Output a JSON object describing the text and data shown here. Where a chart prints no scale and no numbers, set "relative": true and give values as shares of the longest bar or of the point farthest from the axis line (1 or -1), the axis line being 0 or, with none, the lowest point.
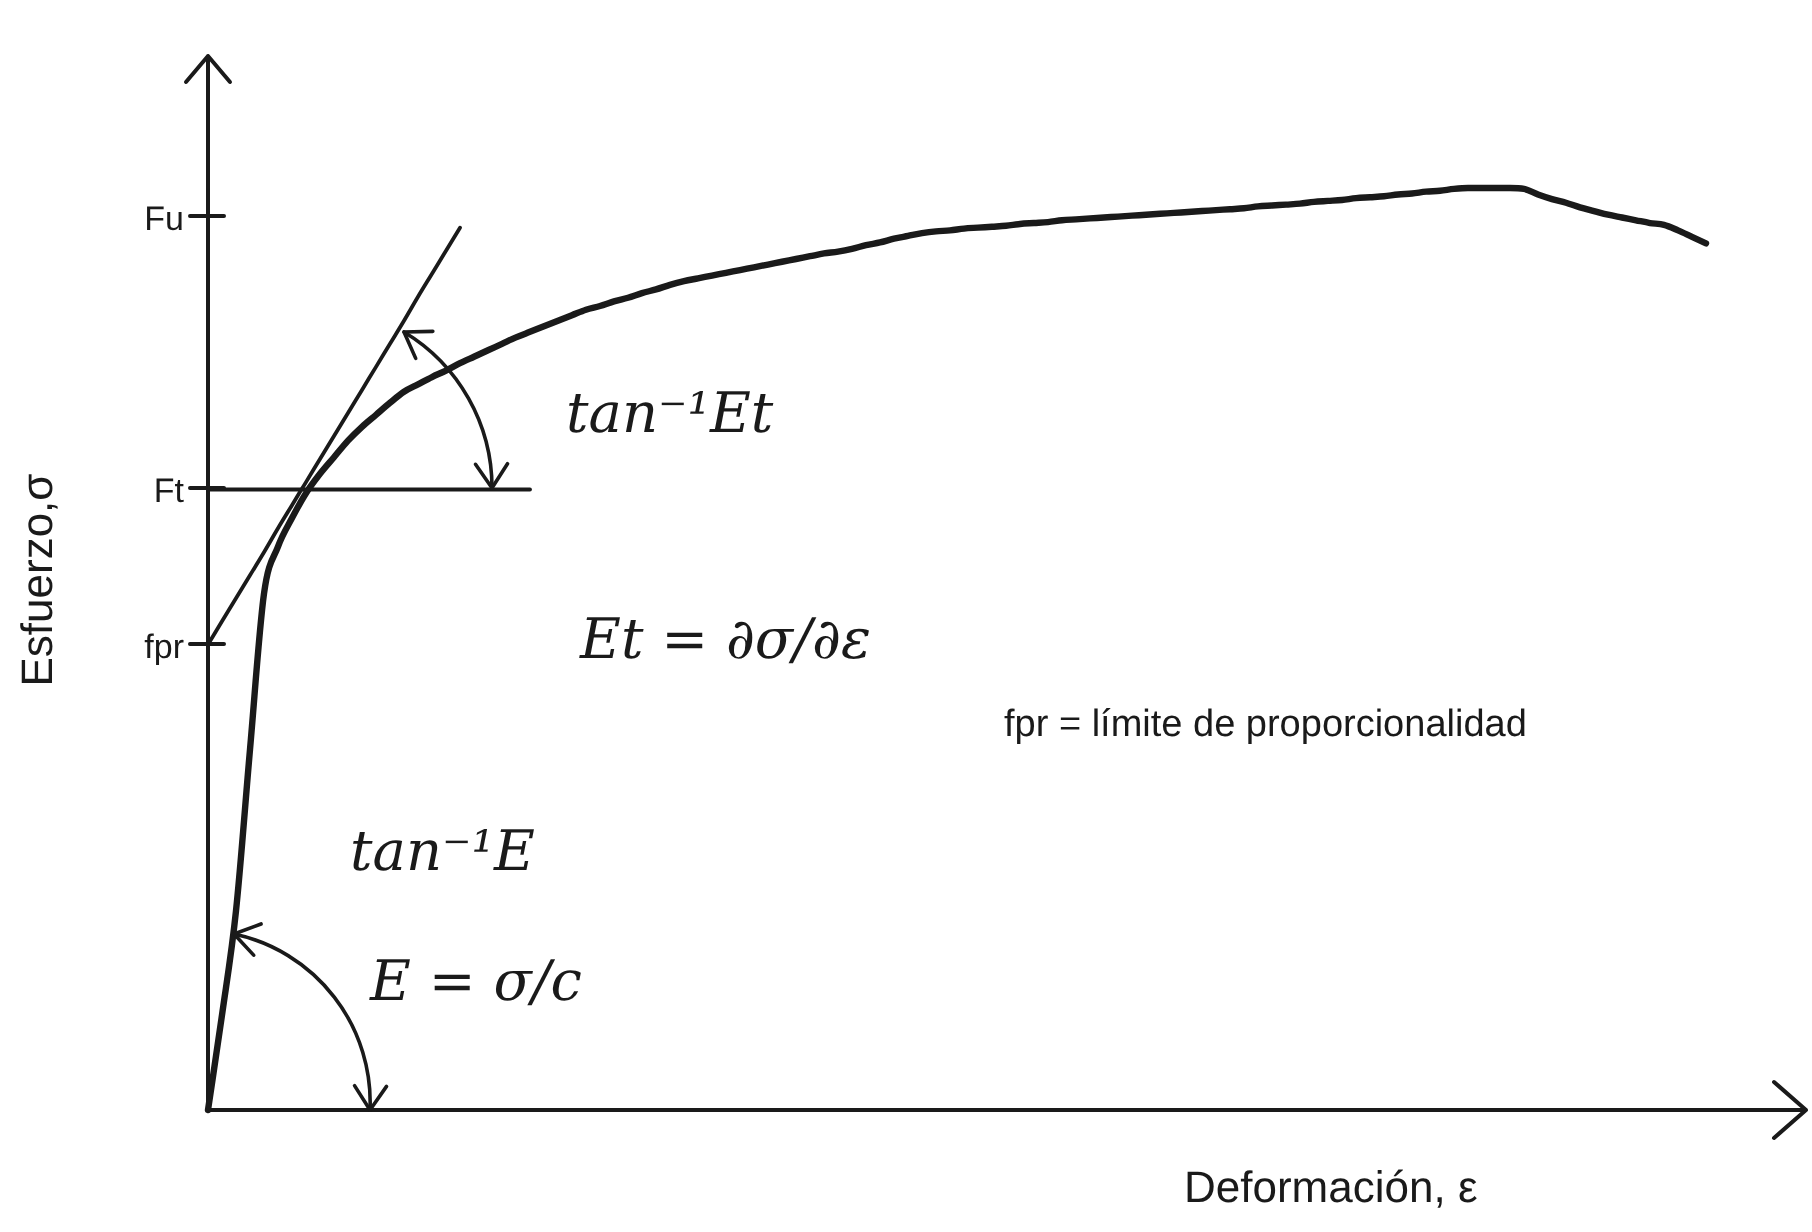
{
  "chart_data": {
    "type": "line",
    "relative": true,
    "xlabel": "Deformación, ε",
    "ylabel": "Esfuerzo,σ",
    "categories": [
      null,
      null,
      null,
      null,
      null,
      null,
      null,
      null,
      null,
      null,
      null,
      null,
      null,
      null,
      null,
      null,
      null,
      null,
      null,
      null,
      null,
      null,
      null,
      null,
      null,
      null,
      null,
      null,
      null,
      null,
      null,
      null,
      null,
      null,
      null,
      null,
      null,
      null,
      null,
      null,
      null,
      null,
      null,
      null,
      null,
      null,
      null,
      null,
      null,
      null,
      null,
      null,
      null,
      null,
      null,
      null,
      null,
      null,
      null,
      null,
      null,
      null,
      null,
      null,
      null,
      null,
      null,
      null,
      null,
      null,
      null,
      null,
      null,
      null,
      null,
      null,
      null,
      null,
      null,
      null,
      null,
      null,
      null,
      null,
      null,
      null,
      null,
      null,
      null,
      null,
      null,
      null,
      null,
      null,
      null,
      null,
      null,
      null,
      null,
      null,
      null,
      null,
      null,
      null,
      null,
      null,
      null,
      null,
      null,
      null,
      null,
      null,
      null,
      null
    ],
    "series": [
      {
        "color": "#1a1a1a",
        "values": [
          0,
          0.103,
          0.216,
          0.391,
          0.56,
          0.611,
          0.642,
          0.669,
          0.69,
          0.708,
          0.726,
          0.741,
          0.754,
          0.767,
          0.779,
          0.787,
          0.795,
          0.802,
          0.81,
          0.817,
          0.824,
          0.831,
          0.838,
          0.844,
          0.85,
          0.856,
          0.862,
          0.868,
          0.872,
          0.877,
          0.881,
          0.886,
          0.89,
          0.895,
          0.899,
          0.902,
          0.905,
          0.908,
          0.911,
          0.914,
          0.917,
          0.92,
          0.923,
          0.926,
          0.929,
          0.931,
          0.934,
          0.938,
          0.941,
          0.945,
          0.948,
          0.951,
          0.953,
          0.954,
          0.956,
          0.957,
          0.958,
          0.959,
          0.961,
          0.962,
          0.963,
          0.965,
          0.966,
          0.967,
          0.968,
          0.969,
          0.97,
          0.971,
          0.972,
          0.973,
          0.974,
          0.975,
          0.976,
          0.977,
          0.978,
          0.98,
          0.981,
          0.982,
          0.983,
          0.985,
          0.986,
          0.987,
          0.989,
          0.99,
          0.991,
          0.993,
          0.994,
          0.996,
          0.997,
          0.999,
          1,
          1,
          1,
          1,
          0.999,
          0.993,
          0.988,
          0.984,
          0.979,
          0.975,
          0.971,
          0.968,
          0.965,
          0.962,
          0.96,
          0.954,
          0.947,
          0.94,
          null,
          null,
          null,
          null,
          null,
          null
        ]
      },
      {
        "color": "#1a1a1a",
        "values": [
          0.505,
          0.53,
          0.555,
          0.58,
          0.605,
          0.631,
          0.656,
          0.681,
          0.706,
          0.731,
          0.756,
          0.781,
          0.806,
          0.831,
          0.856,
          0.882,
          0.907,
          0.932,
          0.957,
          null,
          null,
          null,
          null,
          null,
          null,
          null,
          null,
          null,
          null,
          null,
          null,
          null,
          null,
          null,
          null,
          null,
          null,
          null,
          null,
          null,
          null,
          null,
          null,
          null,
          null,
          null,
          null,
          null,
          null,
          null,
          null,
          null,
          null,
          null,
          null,
          null,
          null,
          null,
          null,
          null,
          null,
          null,
          null,
          null,
          null,
          null,
          null,
          null,
          null,
          null,
          null,
          null,
          null,
          null,
          null,
          null,
          null,
          null,
          null,
          null,
          null,
          null,
          null,
          null,
          null,
          null,
          null,
          null,
          null,
          null,
          null,
          null,
          null,
          null,
          null,
          null,
          null,
          null,
          null,
          null,
          null,
          null,
          null,
          null,
          null,
          null,
          null,
          null,
          null,
          null,
          null,
          null,
          null,
          null
        ]
      },
      {
        "color": "#1a1a1a",
        "values": [
          0.673,
          0.673,
          0.673,
          0.673,
          0.673,
          0.673,
          0.673,
          0.673,
          0.673,
          0.673,
          0.673,
          0.673,
          0.673,
          0.673,
          0.673,
          0.673,
          0.673,
          0.673,
          0.673,
          0.673,
          0.673,
          0.673,
          0.673,
          0.673,
          null,
          null,
          null,
          null,
          null,
          null,
          null,
          null,
          null,
          null,
          null,
          null,
          null,
          null,
          null,
          null,
          null,
          null,
          null,
          null,
          null,
          null,
          null,
          null,
          null,
          null,
          null,
          null,
          null,
          null,
          null,
          null,
          null,
          null,
          null,
          null,
          null,
          null,
          null,
          null,
          null,
          null,
          null,
          null,
          null,
          null,
          null,
          null,
          null,
          null,
          null,
          null,
          null,
          null,
          null,
          null,
          null,
          null,
          null,
          null,
          null,
          null,
          null,
          null,
          null,
          null,
          null,
          null,
          null,
          null,
          null,
          null,
          null,
          null,
          null,
          null,
          null,
          null,
          null,
          null,
          null,
          null,
          null,
          null,
          null,
          null,
          null,
          null,
          null,
          null
        ]
      }
    ],
    "marker": "none",
    "annotations": [
      "Fu",
      "Ft",
      "fpr",
      "tan⁻¹Et",
      "Et = ∂σ/∂ε",
      "fpr = límite de proporcionalidad",
      "tan⁻¹E",
      "E = σ/c"
    ]
  }
}
